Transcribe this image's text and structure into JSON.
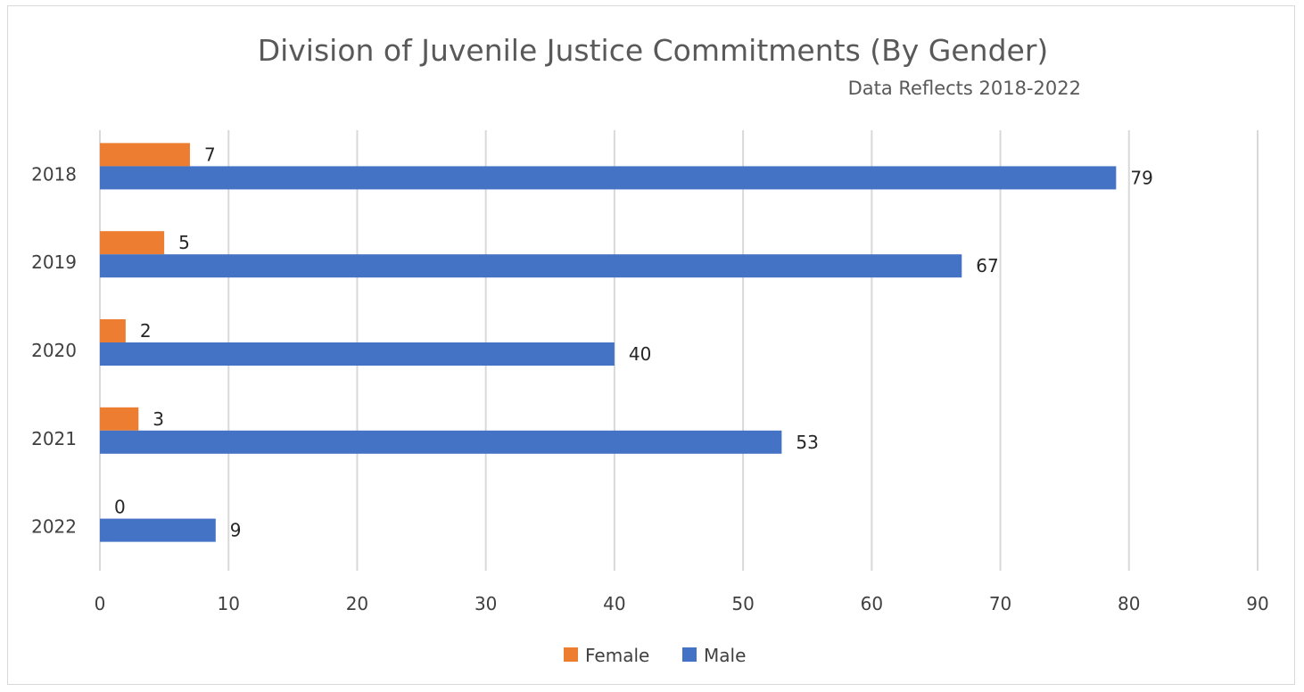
{
  "chart_data": {
    "type": "bar",
    "orientation": "horizontal",
    "title": "Division of Juvenile Justice Commitments (By Gender)",
    "subtitle": "Data Reflects 2018-2022",
    "categories": [
      "2018",
      "2019",
      "2020",
      "2021",
      "2022"
    ],
    "series": [
      {
        "name": "Female",
        "color": "#ed7d31",
        "values": [
          7,
          5,
          2,
          3,
          0
        ]
      },
      {
        "name": "Male",
        "color": "#4472c4",
        "values": [
          79,
          67,
          40,
          53,
          9
        ]
      }
    ],
    "xlim": [
      0,
      90
    ],
    "x_ticks": [
      "0",
      "10",
      "20",
      "30",
      "40",
      "50",
      "60",
      "70",
      "80",
      "90"
    ],
    "xlabel": "",
    "ylabel": "",
    "grid": "vertical",
    "legend_position": "bottom",
    "data_labels": true
  }
}
